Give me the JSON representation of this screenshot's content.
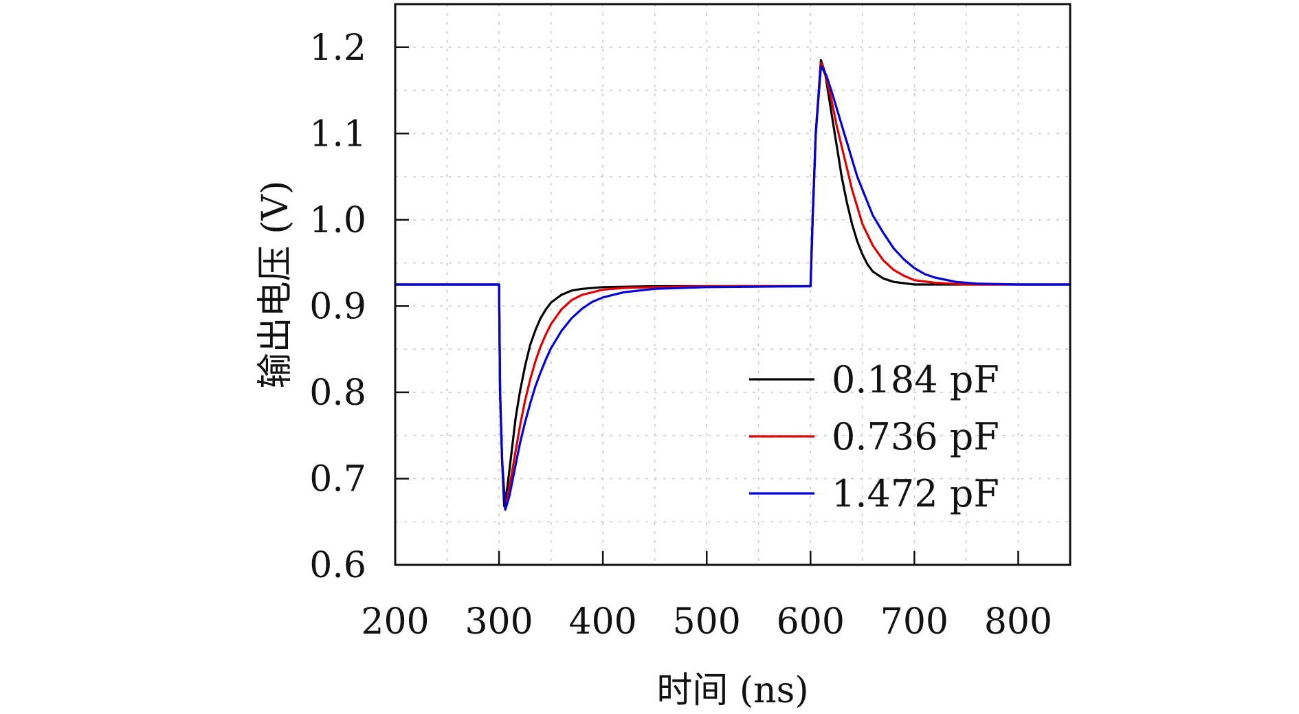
{
  "chart_data": {
    "type": "line",
    "title": "",
    "xlabel": "时间 (ns)",
    "ylabel": "输出电压 (V)",
    "xlim": [
      200,
      850
    ],
    "ylim": [
      0.6,
      1.25
    ],
    "x_ticks": [
      200,
      300,
      400,
      500,
      600,
      700,
      800
    ],
    "x_tick_labels": [
      "200",
      "300",
      "400",
      "500",
      "600",
      "700",
      "800"
    ],
    "y_ticks": [
      0.6,
      0.7,
      0.8,
      0.9,
      1.0,
      1.1,
      1.2
    ],
    "y_tick_labels": [
      "0.6",
      "0.7",
      "0.8",
      "0.9",
      "1.0",
      "1.1",
      "1.2"
    ],
    "grid": true,
    "legend_position": "lower-right",
    "series": [
      {
        "name": "0.184 pF",
        "color": "#000000",
        "points": [
          [
            200,
            0.925
          ],
          [
            300,
            0.925
          ],
          [
            301,
            0.8
          ],
          [
            303,
            0.72
          ],
          [
            305,
            0.668
          ],
          [
            308,
            0.69
          ],
          [
            312,
            0.73
          ],
          [
            316,
            0.77
          ],
          [
            320,
            0.8
          ],
          [
            325,
            0.83
          ],
          [
            330,
            0.855
          ],
          [
            335,
            0.872
          ],
          [
            340,
            0.886
          ],
          [
            345,
            0.896
          ],
          [
            350,
            0.904
          ],
          [
            360,
            0.913
          ],
          [
            370,
            0.918
          ],
          [
            380,
            0.92
          ],
          [
            400,
            0.922
          ],
          [
            450,
            0.923
          ],
          [
            500,
            0.923
          ],
          [
            600,
            0.923
          ],
          [
            602,
            1.0
          ],
          [
            605,
            1.1
          ],
          [
            610,
            1.185
          ],
          [
            614,
            1.17
          ],
          [
            618,
            1.14
          ],
          [
            622,
            1.11
          ],
          [
            626,
            1.08
          ],
          [
            630,
            1.05
          ],
          [
            635,
            1.02
          ],
          [
            640,
            0.995
          ],
          [
            645,
            0.975
          ],
          [
            650,
            0.96
          ],
          [
            655,
            0.948
          ],
          [
            660,
            0.94
          ],
          [
            670,
            0.932
          ],
          [
            680,
            0.928
          ],
          [
            700,
            0.925
          ],
          [
            750,
            0.925
          ],
          [
            850,
            0.925
          ]
        ]
      },
      {
        "name": "0.736 pF",
        "color": "#e00000",
        "points": [
          [
            200,
            0.925
          ],
          [
            300,
            0.925
          ],
          [
            301,
            0.8
          ],
          [
            303,
            0.72
          ],
          [
            306,
            0.666
          ],
          [
            310,
            0.69
          ],
          [
            315,
            0.725
          ],
          [
            320,
            0.76
          ],
          [
            325,
            0.79
          ],
          [
            330,
            0.815
          ],
          [
            335,
            0.836
          ],
          [
            340,
            0.853
          ],
          [
            345,
            0.867
          ],
          [
            350,
            0.879
          ],
          [
            360,
            0.896
          ],
          [
            370,
            0.907
          ],
          [
            380,
            0.913
          ],
          [
            400,
            0.919
          ],
          [
            420,
            0.921
          ],
          [
            450,
            0.922
          ],
          [
            500,
            0.923
          ],
          [
            600,
            0.923
          ],
          [
            602,
            1.0
          ],
          [
            605,
            1.1
          ],
          [
            610,
            1.182
          ],
          [
            615,
            1.165
          ],
          [
            620,
            1.14
          ],
          [
            625,
            1.11
          ],
          [
            630,
            1.085
          ],
          [
            635,
            1.06
          ],
          [
            640,
            1.035
          ],
          [
            645,
            1.015
          ],
          [
            650,
            0.995
          ],
          [
            660,
            0.97
          ],
          [
            670,
            0.953
          ],
          [
            680,
            0.942
          ],
          [
            690,
            0.935
          ],
          [
            700,
            0.93
          ],
          [
            720,
            0.927
          ],
          [
            750,
            0.925
          ],
          [
            850,
            0.925
          ]
        ]
      },
      {
        "name": "1.472 pF",
        "color": "#0000dd",
        "points": [
          [
            200,
            0.925
          ],
          [
            300,
            0.925
          ],
          [
            301,
            0.8
          ],
          [
            303,
            0.72
          ],
          [
            306,
            0.664
          ],
          [
            310,
            0.68
          ],
          [
            315,
            0.71
          ],
          [
            320,
            0.74
          ],
          [
            325,
            0.765
          ],
          [
            330,
            0.787
          ],
          [
            335,
            0.807
          ],
          [
            340,
            0.823
          ],
          [
            345,
            0.838
          ],
          [
            350,
            0.851
          ],
          [
            360,
            0.871
          ],
          [
            370,
            0.886
          ],
          [
            380,
            0.897
          ],
          [
            390,
            0.905
          ],
          [
            400,
            0.91
          ],
          [
            420,
            0.916
          ],
          [
            450,
            0.92
          ],
          [
            500,
            0.922
          ],
          [
            600,
            0.923
          ],
          [
            602,
            1.0
          ],
          [
            605,
            1.1
          ],
          [
            610,
            1.178
          ],
          [
            615,
            1.168
          ],
          [
            620,
            1.15
          ],
          [
            625,
            1.13
          ],
          [
            630,
            1.11
          ],
          [
            635,
            1.09
          ],
          [
            640,
            1.07
          ],
          [
            645,
            1.05
          ],
          [
            650,
            1.035
          ],
          [
            660,
            1.005
          ],
          [
            670,
            0.985
          ],
          [
            680,
            0.967
          ],
          [
            690,
            0.954
          ],
          [
            700,
            0.944
          ],
          [
            710,
            0.937
          ],
          [
            720,
            0.933
          ],
          [
            740,
            0.928
          ],
          [
            760,
            0.926
          ],
          [
            800,
            0.925
          ],
          [
            850,
            0.925
          ]
        ]
      }
    ]
  }
}
